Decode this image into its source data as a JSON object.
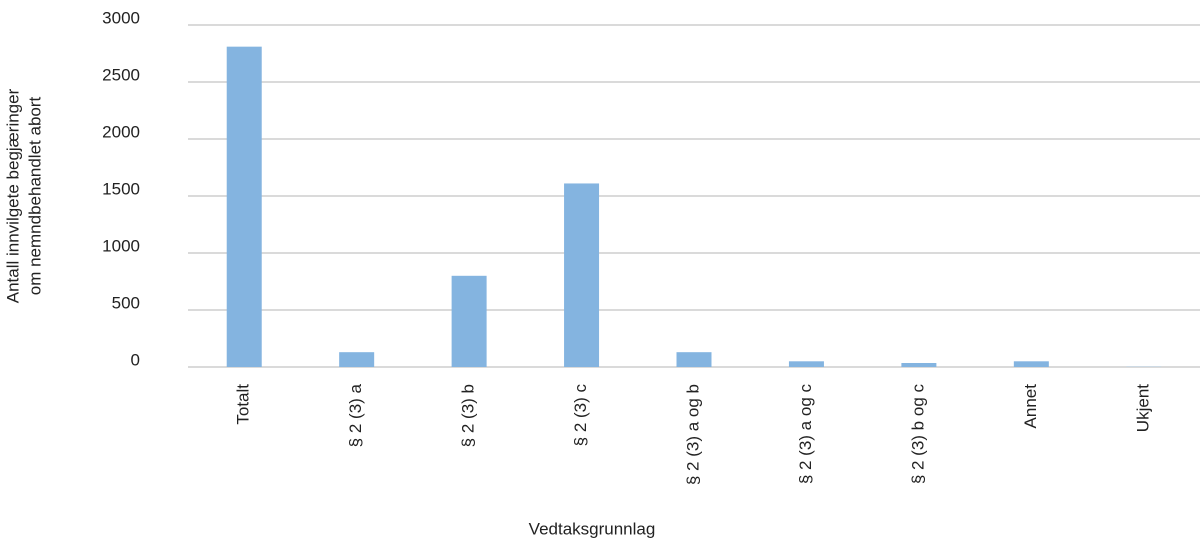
{
  "chart_data": {
    "type": "bar",
    "y_label": [
      "Antall innvilgete begjæringer",
      "om nemndbehandlet abort"
    ],
    "x_label": "Vedtaksgrunnlag",
    "categories": [
      "Totalt",
      "§ 2 (3) a",
      "§ 2 (3) b",
      "§ 2 (3) c",
      "§ 2 (3) a og b",
      "§ 2 (3) a og c",
      "§ 2 (3) b og c",
      "Annet",
      "Ukjent"
    ],
    "values": [
      2810,
      130,
      800,
      1610,
      130,
      50,
      35,
      50,
      2
    ],
    "color": "#84b4e0",
    "ylim": [
      0,
      3000
    ],
    "yticks": [
      0,
      500,
      1000,
      1500,
      2000,
      2500,
      3000
    ],
    "grid": true
  }
}
